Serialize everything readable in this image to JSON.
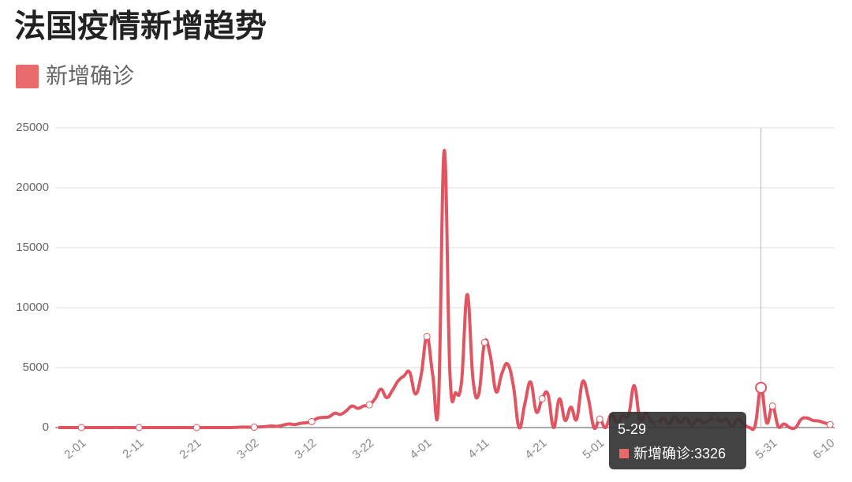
{
  "chart_data": {
    "type": "line",
    "title": "法国疫情新增趋势",
    "categories": [
      null,
      null,
      null,
      null,
      "2-01",
      null,
      null,
      null,
      null,
      null,
      null,
      null,
      null,
      null,
      "2-11",
      null,
      null,
      null,
      null,
      null,
      null,
      null,
      null,
      null,
      "2-21",
      null,
      null,
      null,
      null,
      null,
      null,
      null,
      null,
      null,
      "3-02",
      null,
      null,
      null,
      null,
      null,
      null,
      null,
      null,
      null,
      "3-12",
      null,
      null,
      null,
      null,
      null,
      null,
      null,
      null,
      null,
      "3-22",
      null,
      null,
      null,
      null,
      null,
      null,
      null,
      null,
      null,
      "4-01",
      null,
      null,
      null,
      null,
      null,
      null,
      null,
      null,
      null,
      "4-11",
      null,
      null,
      null,
      null,
      null,
      null,
      null,
      null,
      null,
      "4-21",
      null,
      null,
      null,
      null,
      null,
      null,
      null,
      null,
      null,
      "5-01",
      null,
      null,
      null,
      null,
      null,
      null,
      null,
      null,
      null,
      null,
      null,
      null,
      null,
      null,
      null,
      null,
      null,
      null,
      null,
      null,
      null,
      null,
      null,
      null,
      null,
      null,
      null,
      "5-29",
      null,
      "5-31",
      null,
      null,
      null,
      null,
      null,
      null,
      null,
      null,
      null,
      "6-10"
    ],
    "series": [
      {
        "name": "新增确诊",
        "color": "#e05561",
        "values": [
          0,
          0,
          0,
          0,
          0,
          0,
          0,
          0,
          0,
          0,
          5,
          0,
          0,
          0,
          0,
          0,
          0,
          0,
          0,
          0,
          0,
          0,
          0,
          0,
          0,
          0,
          0,
          0,
          2,
          0,
          4,
          20,
          43,
          30,
          30,
          60,
          80,
          130,
          100,
          200,
          300,
          250,
          350,
          400,
          500,
          780,
          850,
          900,
          1200,
          1100,
          1400,
          1800,
          1600,
          1800,
          1900,
          2400,
          3200,
          2500,
          3100,
          3900,
          4300,
          4600,
          2800,
          4400,
          7600,
          4400,
          2000,
          23100,
          4400,
          2900,
          3800,
          11100,
          4000,
          2800,
          7100,
          6000,
          3000,
          4500,
          5300,
          3500,
          0,
          2000,
          3800,
          1300,
          2400,
          2800,
          0,
          2400,
          600,
          1700,
          700,
          3800,
          2500,
          0,
          700,
          0,
          1100,
          400,
          1000,
          1000,
          3500,
          600,
          1200,
          500,
          300,
          800,
          300,
          900,
          400,
          800,
          200,
          700,
          400,
          600,
          900,
          500,
          700,
          100,
          700,
          300,
          0,
          200,
          3326,
          400,
          1800,
          100,
          300,
          0,
          0,
          700,
          800,
          600,
          550,
          400,
          250
        ]
      }
    ],
    "ylim": [
      0,
      25000
    ],
    "yticks": [
      0,
      5000,
      10000,
      15000,
      20000,
      25000
    ],
    "grid": true
  }
}
